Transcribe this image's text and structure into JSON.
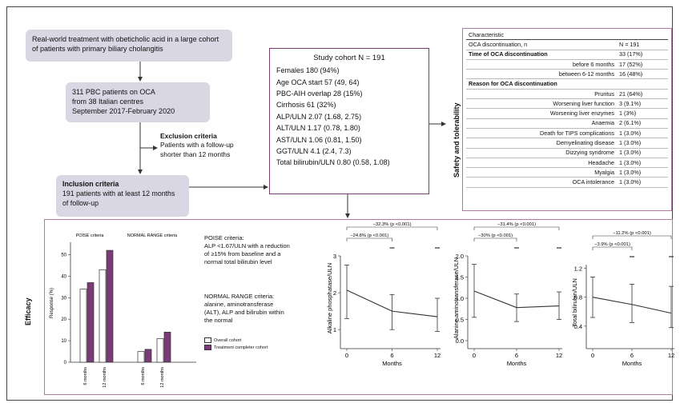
{
  "flow": {
    "box1": "Real-world treatment with obeticholic acid in a large cohort of patients with primary biliary cholangitis",
    "box2_l1": "311 PBC patients on OCA",
    "box2_l2": "from 38 Italian centres",
    "box2_l3": "September 2017-February 2020",
    "excl_title": "Exclusion criteria",
    "excl_text": "Patients with a follow-up shorter than 12 months",
    "incl_title": "Inclusion criteria",
    "incl_text": "191 patients with at least 12 months of follow-up"
  },
  "cohort": {
    "title": "Study cohort N = 191",
    "rows": [
      "Females 180 (94%)",
      "Age OCA start  57 (49, 64)",
      "PBC-AIH overlap 28 (15%)",
      "Cirrhosis 61 (32%)",
      "ALP/ULN  2.07 (1.68, 2.75)",
      "ALT/ULN 1.17 (0.78, 1.80)",
      "AST/ULN 1.06 (0.81, 1.50)",
      "GGT/ULN 4.1 (2.4, 7.3)",
      "Total bilirubin/ULN 0.80 (0.58, 1.08)"
    ]
  },
  "safety": {
    "side_label": "Safety and tolerability",
    "header": "Characteristic",
    "rows": [
      {
        "label": "OCA discontinuation, n",
        "value": "N = 191",
        "bold": false,
        "align": "left"
      },
      {
        "label": "Time of OCA discontinuation",
        "value": "33 (17%)",
        "bold": true,
        "align": "left"
      },
      {
        "label": "before 6 months",
        "value": "17 (52%)",
        "bold": false,
        "align": "right"
      },
      {
        "label": "between 6-12 months",
        "value": "16 (48%)",
        "bold": false,
        "align": "right"
      },
      {
        "label": "Reason for OCA discontinuation",
        "value": "",
        "bold": true,
        "align": "left"
      },
      {
        "label": "Pruritus",
        "value": "21 (64%)",
        "bold": false,
        "align": "right"
      },
      {
        "label": "Worsening liver function",
        "value": "3 (9.1%)",
        "bold": false,
        "align": "right"
      },
      {
        "label": "Worsening liver enzymes",
        "value": "1 (3%)",
        "bold": false,
        "align": "right"
      },
      {
        "label": "Anaemia",
        "value": "2 (6.1%)",
        "bold": false,
        "align": "right"
      },
      {
        "label": "Death for TIPS complications",
        "value": "1 (3.0%)",
        "bold": false,
        "align": "right"
      },
      {
        "label": "Demyelinating disease",
        "value": "1 (3.0%)",
        "bold": false,
        "align": "right"
      },
      {
        "label": "Dizzying syndrome",
        "value": "1 (3.0%)",
        "bold": false,
        "align": "right"
      },
      {
        "label": "Headache",
        "value": "1 (3.0%)",
        "bold": false,
        "align": "right"
      },
      {
        "label": "Myalgia",
        "value": "1 (3.0%)",
        "bold": false,
        "align": "right"
      },
      {
        "label": "OCA intolerance",
        "value": "1 (3.0%)",
        "bold": false,
        "align": "right"
      }
    ]
  },
  "efficacy": {
    "side_label": "Efficacy",
    "poise_title": "POISE criteria:",
    "poise_text": "ALP <1.67/ULN with a reduction of ≥15% from baseline and a normal total bilirubin level",
    "normal_text": "NORMAL RANGE criteria: alanine, aminotransferase (ALT), ALP and bilirubin within the normal",
    "legend": [
      "Overall cohort",
      "Treatment completer cohort"
    ]
  },
  "chart_data": [
    {
      "type": "bar",
      "panel_titles": [
        "POISE criteria",
        "NORMAL RANGE criteria"
      ],
      "ylabel": "Response (%)",
      "ylim": [
        0,
        55
      ],
      "yticks": [
        "0",
        "10",
        "20",
        "30",
        "40",
        "50"
      ],
      "categories": [
        "6 months",
        "12 months",
        "6 months",
        "12 months"
      ],
      "series": [
        {
          "name": "Overall cohort",
          "values": [
            34,
            43,
            5,
            11
          ]
        },
        {
          "name": "Treatment completer cohort",
          "values": [
            37,
            52,
            6,
            14
          ]
        }
      ],
      "colors": {
        "overall": "#ffffff",
        "completer": "#7b3a78"
      }
    },
    {
      "type": "line",
      "ylabel": "Alkaline phosphatase/ULN",
      "xlabel": "Months",
      "x": [
        0,
        6,
        12
      ],
      "y": [
        2.07,
        1.5,
        1.35
      ],
      "err_low": [
        1.3,
        1.0,
        0.95
      ],
      "err_high": [
        2.75,
        1.95,
        1.85
      ],
      "ylim": [
        0.7,
        3.0
      ],
      "yticks": [
        "1",
        "2",
        "3"
      ],
      "annotations": [
        "−32.3% (p <0.001)",
        "−24.8% (p <0.001)"
      ]
    },
    {
      "type": "line",
      "ylabel": "Alanine aminotransferase/ULN",
      "xlabel": "Months",
      "x": [
        0,
        6,
        12
      ],
      "y": [
        1.17,
        0.78,
        0.82
      ],
      "err_low": [
        0.55,
        0.45,
        0.5
      ],
      "err_high": [
        1.8,
        1.1,
        1.15
      ],
      "ylim": [
        0.0,
        2.0
      ],
      "yticks": [
        "0.0",
        "0.5",
        "1.0",
        "1.5",
        "2.0"
      ],
      "annotations": [
        "−31.4% (p <0.001)",
        "−30% (p <0.001)"
      ]
    },
    {
      "type": "line",
      "ylabel": "Total bilirubin/ULN",
      "xlabel": "Months",
      "x": [
        0,
        6,
        12
      ],
      "y": [
        0.8,
        0.7,
        0.58
      ],
      "err_low": [
        0.52,
        0.45,
        0.38
      ],
      "err_high": [
        1.08,
        0.98,
        0.95
      ],
      "ylim": [
        0.2,
        1.25
      ],
      "yticks": [
        "0.4",
        "0.8",
        "1.2"
      ],
      "annotations": [
        "−11.2% (p <0.001)",
        "−3.9% (p <0.001)"
      ]
    }
  ]
}
